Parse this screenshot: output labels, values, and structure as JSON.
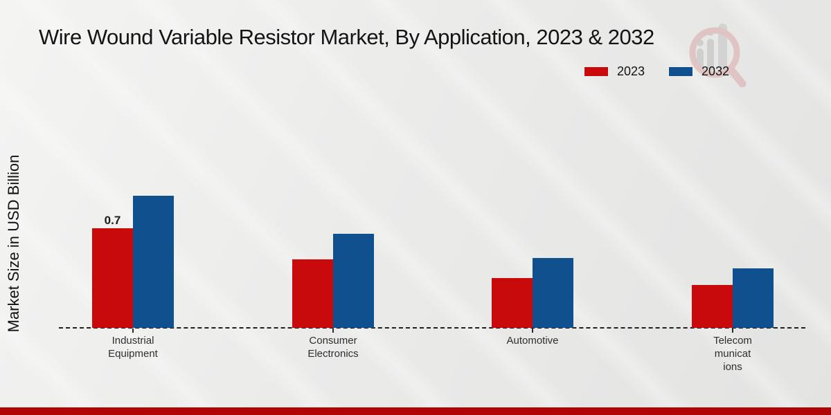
{
  "title": "Wire Wound Variable Resistor Market, By Application, 2023 & 2032",
  "y_axis_label": "Market Size in USD Billion",
  "legend": {
    "items": [
      {
        "label": "2023",
        "color": "#c90a0a"
      },
      {
        "label": "2032",
        "color": "#11508e"
      }
    ]
  },
  "chart_data": {
    "type": "bar",
    "categories": [
      "Industrial Equipment",
      "Consumer Electronics",
      "Automotive",
      "Telecommunications"
    ],
    "category_label_lines": [
      [
        "Industrial",
        "Equipment"
      ],
      [
        "Consumer",
        "Electronics"
      ],
      [
        "Automotive"
      ],
      [
        "Telecom",
        "municat",
        "ions"
      ]
    ],
    "series": [
      {
        "name": "2023",
        "color": "#c90a0a",
        "values": [
          0.7,
          0.48,
          0.35,
          0.3
        ]
      },
      {
        "name": "2032",
        "color": "#11508e",
        "values": [
          0.93,
          0.66,
          0.49,
          0.42
        ]
      }
    ],
    "data_labels": [
      {
        "series": "2023",
        "category": "Industrial Equipment",
        "text": "0.7"
      }
    ],
    "title": "Wire Wound Variable Resistor Market, By Application, 2023 & 2032",
    "xlabel": "",
    "ylabel": "Market Size in USD Billion",
    "ylim": [
      0,
      1.05
    ],
    "grid": false,
    "legend_position": "top-right",
    "baseline_style": "dashed"
  },
  "colors": {
    "series_2023": "#c90a0a",
    "series_2032": "#11508e",
    "bottom_bar": "#b00505",
    "background": "#ebebea",
    "axis": "#1f1f1f",
    "text": "#2e2e2e"
  }
}
